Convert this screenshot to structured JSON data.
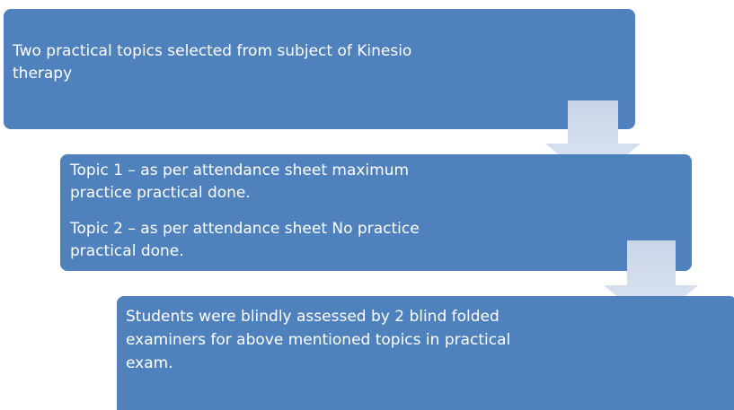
{
  "steps": [
    {
      "lines": [
        "Two practical topics selected from subject of Kinesio",
        "therapy"
      ]
    },
    {
      "lines": [
        "Topic 1 – as per attendance sheet maximum",
        "practice practical done.",
        "Topic 2 – as per attendance sheet No practice",
        "practical done."
      ]
    },
    {
      "lines": [
        "Students were blindly assessed by 2 blind folded",
        "examiners for above mentioned topics in practical",
        "exam."
      ]
    }
  ]
}
